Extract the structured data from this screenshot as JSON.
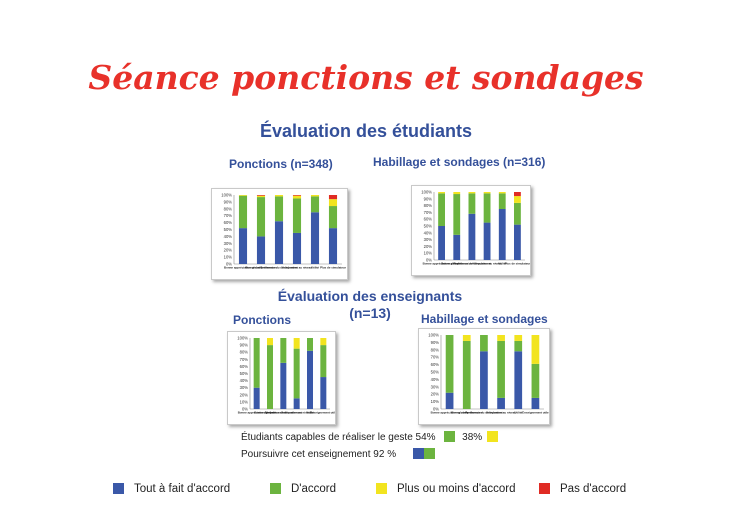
{
  "title": "Séance ponctions et sondages",
  "sections": {
    "students": "Évaluation des étudiants",
    "teachers_line1": "Évaluation des enseignants",
    "teachers_line2": "(n=13)"
  },
  "chart_titles": {
    "s_ponctions": "Ponctions (n=348)",
    "s_habillage": "Habillage et sondages (n=316)",
    "t_ponctions": "Ponctions",
    "t_habillage": "Habillage et sondages"
  },
  "colors": {
    "tout": "#3a58a8",
    "accord": "#6cb43f",
    "plus_moins": "#f2e41f",
    "pas": "#e02b24",
    "text_blue": "#34509a",
    "title_red": "#e8312a"
  },
  "notes": {
    "capables_label": "Étudiants capables de réaliser le geste 54%",
    "capables_value2": "38%",
    "poursuivre_label": "Poursuivre cet enseignement 92 %"
  },
  "legend": [
    {
      "label": "Tout à fait d'accord",
      "color": "#3a58a8"
    },
    {
      "label": "D'accord",
      "color": "#6cb43f"
    },
    {
      "label": "Plus ou moins d'accord",
      "color": "#f2e41f"
    },
    {
      "label": "Pas d'accord",
      "color": "#e02b24"
    }
  ],
  "chart_data": [
    {
      "type": "bar",
      "stacked": true,
      "title": "Ponctions (n=348)",
      "y_ticks": [
        "100%",
        "90%",
        "80%",
        "70%",
        "60%",
        "50%",
        "40%",
        "30%",
        "20%",
        "10%",
        "0%"
      ],
      "ylim": [
        0,
        100
      ],
      "categories": [
        "Bonne appréciation globale",
        "Bonne compréhension",
        "Pertinence du déroulement",
        "Adéquation au niveau",
        "Utilité",
        "Plus de simulateur"
      ],
      "series": [
        {
          "name": "Tout à fait d'accord",
          "values": [
            52,
            40,
            62,
            45,
            75,
            52
          ]
        },
        {
          "name": "D'accord",
          "values": [
            47,
            57,
            36,
            50,
            23,
            32
          ]
        },
        {
          "name": "Plus ou moins d'accord",
          "values": [
            1,
            2,
            2,
            4,
            2,
            10
          ]
        },
        {
          "name": "Pas d'accord",
          "values": [
            0,
            1,
            0,
            1,
            0,
            6
          ]
        }
      ]
    },
    {
      "type": "bar",
      "stacked": true,
      "title": "Habillage et sondages (n=316)",
      "y_ticks": [
        "100%",
        "90%",
        "80%",
        "70%",
        "60%",
        "50%",
        "40%",
        "30%",
        "20%",
        "10%",
        "0%"
      ],
      "ylim": [
        0,
        100
      ],
      "categories": [
        "Bonne appréciation globale",
        "Bonne compréhension",
        "Pertinence du déroulement",
        "Adéquation au niveau",
        "Utilité",
        "Plus de simulateur"
      ],
      "series": [
        {
          "name": "Tout à fait d'accord",
          "values": [
            50,
            37,
            68,
            55,
            75,
            52
          ]
        },
        {
          "name": "D'accord",
          "values": [
            48,
            60,
            30,
            43,
            23,
            32
          ]
        },
        {
          "name": "Plus ou moins d'accord",
          "values": [
            2,
            3,
            2,
            2,
            2,
            10
          ]
        },
        {
          "name": "Pas d'accord",
          "values": [
            0,
            0,
            0,
            0,
            0,
            6
          ]
        }
      ]
    },
    {
      "type": "bar",
      "stacked": true,
      "title": "Ponctions",
      "y_ticks": [
        "100%",
        "90%",
        "80%",
        "70%",
        "60%",
        "50%",
        "40%",
        "30%",
        "20%",
        "10%",
        "0%"
      ],
      "ylim": [
        0,
        100
      ],
      "categories": [
        "Bonne appréciation globale",
        "Bonne compréhension",
        "Pertinence du déroulement",
        "Adéquation au niveau",
        "Utilité",
        "Enseignement utile"
      ],
      "series": [
        {
          "name": "Tout à fait d'accord",
          "values": [
            30,
            0,
            65,
            15,
            82,
            45
          ]
        },
        {
          "name": "D'accord",
          "values": [
            70,
            90,
            35,
            70,
            18,
            45
          ]
        },
        {
          "name": "Plus ou moins d'accord",
          "values": [
            0,
            10,
            0,
            15,
            0,
            10
          ]
        },
        {
          "name": "Pas d'accord",
          "values": [
            0,
            0,
            0,
            0,
            0,
            0
          ]
        }
      ]
    },
    {
      "type": "bar",
      "stacked": true,
      "title": "Habillage et sondages",
      "y_ticks": [
        "100%",
        "90%",
        "80%",
        "70%",
        "60%",
        "50%",
        "40%",
        "30%",
        "20%",
        "10%",
        "0%"
      ],
      "ylim": [
        0,
        100
      ],
      "categories": [
        "Bonne appréciation globale",
        "Bonne compréhension",
        "Pertinence du déroulement",
        "Adéquation au niveau",
        "Utilité",
        "Enseignement utile"
      ],
      "series": [
        {
          "name": "Tout à fait d'accord",
          "values": [
            22,
            0,
            78,
            15,
            78,
            15
          ]
        },
        {
          "name": "D'accord",
          "values": [
            78,
            92,
            22,
            77,
            14,
            46
          ]
        },
        {
          "name": "Plus ou moins d'accord",
          "values": [
            0,
            8,
            0,
            8,
            8,
            39
          ]
        },
        {
          "name": "Pas d'accord",
          "values": [
            0,
            0,
            0,
            0,
            0,
            0
          ]
        }
      ]
    }
  ]
}
